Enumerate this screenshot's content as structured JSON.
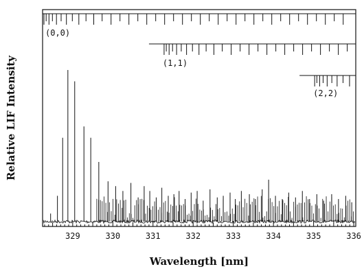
{
  "chart_data": {
    "type": "line",
    "xlabel": "Wavelength [nm]",
    "ylabel": "Relative LIF Intensity",
    "xlim": [
      328.25,
      336.05
    ],
    "ylim": [
      0,
      1
    ],
    "x_ticks": [
      329,
      330,
      331,
      332,
      333,
      334,
      335,
      336
    ],
    "x_tick_labels": [
      "329",
      "330",
      "331",
      "332",
      "333",
      "334",
      "335",
      "336"
    ],
    "y_ticks_labeled": false,
    "grid": false,
    "baseline": 0.03,
    "series": [
      {
        "peaks": [
          {
            "x": 328.45,
            "y": 0.08
          },
          {
            "x": 328.62,
            "y": 0.19
          },
          {
            "x": 328.75,
            "y": 0.55
          },
          {
            "x": 328.88,
            "y": 0.97
          },
          {
            "x": 329.05,
            "y": 0.9
          },
          {
            "x": 329.28,
            "y": 0.62
          },
          {
            "x": 329.45,
            "y": 0.55
          },
          {
            "x": 329.65,
            "y": 0.4
          },
          {
            "x": 329.88,
            "y": 0.28
          },
          {
            "x": 330.07,
            "y": 0.25
          },
          {
            "x": 330.25,
            "y": 0.22
          },
          {
            "x": 330.45,
            "y": 0.27
          },
          {
            "x": 330.63,
            "y": 0.18
          },
          {
            "x": 330.78,
            "y": 0.25
          },
          {
            "x": 330.92,
            "y": 0.22
          },
          {
            "x": 331.08,
            "y": 0.18
          },
          {
            "x": 331.22,
            "y": 0.24
          },
          {
            "x": 331.38,
            "y": 0.19
          },
          {
            "x": 331.52,
            "y": 0.2
          },
          {
            "x": 331.65,
            "y": 0.22
          },
          {
            "x": 331.8,
            "y": 0.17
          },
          {
            "x": 331.95,
            "y": 0.21
          },
          {
            "x": 332.1,
            "y": 0.22
          },
          {
            "x": 332.25,
            "y": 0.16
          },
          {
            "x": 332.42,
            "y": 0.23
          },
          {
            "x": 332.6,
            "y": 0.18
          },
          {
            "x": 332.75,
            "y": 0.19
          },
          {
            "x": 332.92,
            "y": 0.21
          },
          {
            "x": 333.05,
            "y": 0.17
          },
          {
            "x": 333.2,
            "y": 0.22
          },
          {
            "x": 333.4,
            "y": 0.2
          },
          {
            "x": 333.55,
            "y": 0.17
          },
          {
            "x": 333.72,
            "y": 0.23
          },
          {
            "x": 333.88,
            "y": 0.29
          },
          {
            "x": 334.05,
            "y": 0.19
          },
          {
            "x": 334.22,
            "y": 0.17
          },
          {
            "x": 334.38,
            "y": 0.21
          },
          {
            "x": 334.55,
            "y": 0.18
          },
          {
            "x": 334.72,
            "y": 0.22
          },
          {
            "x": 334.9,
            "y": 0.17
          },
          {
            "x": 335.08,
            "y": 0.2
          },
          {
            "x": 335.25,
            "y": 0.16
          },
          {
            "x": 335.45,
            "y": 0.2
          },
          {
            "x": 335.62,
            "y": 0.17
          },
          {
            "x": 335.8,
            "y": 0.19
          },
          {
            "x": 335.95,
            "y": 0.15
          }
        ]
      }
    ],
    "band_markers": [
      {
        "label": "(0,0)",
        "x_start": 328.25,
        "x_end": 336.05,
        "level": 0
      },
      {
        "label": "(1,1)",
        "x_start": 330.9,
        "x_end": 336.05,
        "level": 1
      },
      {
        "label": "(2,2)",
        "x_start": 334.65,
        "x_end": 336.05,
        "level": 2
      }
    ]
  }
}
